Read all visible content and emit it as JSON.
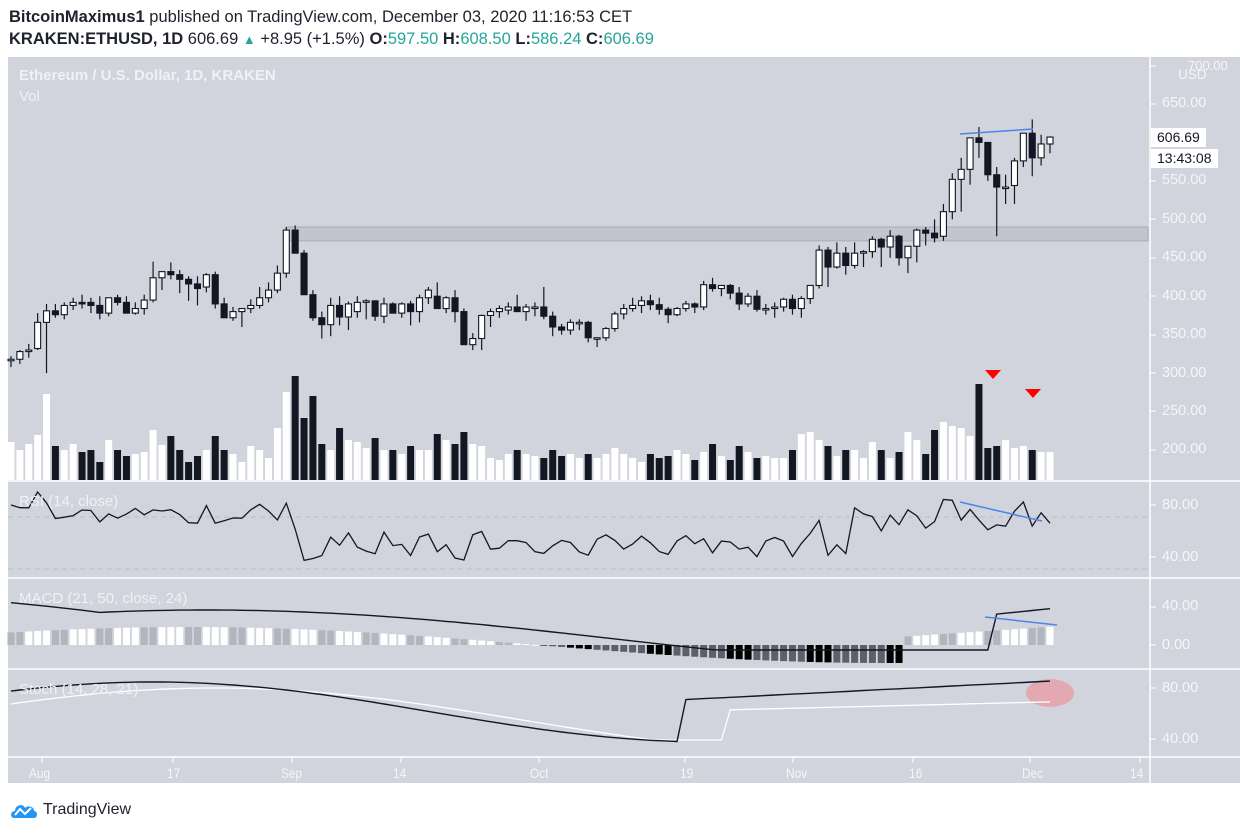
{
  "header": {
    "author": "BitcoinMaximus1",
    "published_text": "published on TradingView.com, December 03, 2020 11:16:53 CET",
    "symbol": "KRAKEN:ETHUSD, 1D",
    "last": "606.69",
    "change": "+8.95 (+1.5%)",
    "o_label": "O:",
    "o": "597.50",
    "h_label": "H:",
    "h": "608.50",
    "l_label": "L:",
    "l": "586.24",
    "c_label": "C:",
    "c": "606.69"
  },
  "legend": {
    "title": "Ethereum / U.S. Dollar, 1D, KRAKEN",
    "vol": "Vol",
    "rsi": "RSI (14, close)",
    "macd": "MACD (21, 50, close, 24)",
    "stoch": "Stoch (14, 28, 21)"
  },
  "price_axis": {
    "currency": "USD",
    "ticks": [
      "700.00",
      "650.00",
      "550.00",
      "500.00",
      "450.00",
      "400.00",
      "350.00",
      "300.00",
      "250.00",
      "200.00"
    ],
    "last_price_tag": "606.69",
    "countdown_tag": "13:43:08"
  },
  "rsi_axis": {
    "ticks": [
      "80.00",
      "40.00"
    ]
  },
  "macd_axis": {
    "ticks": [
      "40.00",
      "0.00"
    ]
  },
  "stoch_axis": {
    "ticks": [
      "80.00",
      "40.00"
    ]
  },
  "time_axis": {
    "ticks": [
      "Aug",
      "17",
      "Sep",
      "14",
      "Oct",
      "19",
      "Nov",
      "16",
      "Dec",
      "14"
    ]
  },
  "footer": {
    "brand": "TradingView"
  },
  "colors": {
    "background": "#d1d4dc",
    "up_candle": "#ffffff",
    "down_candle": "#131722",
    "trendline": "#4a86e8",
    "marker": "#ff0000",
    "highlight_circle": "#e8a0a8",
    "zone": "#c2c5cd"
  },
  "chart_data": [
    {
      "type": "candlestick",
      "title": "Ethereum / U.S. Dollar, 1D, KRAKEN",
      "ylabel": "USD",
      "ylim": [
        160,
        700
      ],
      "x_ticks": [
        "Aug",
        "17",
        "Sep",
        "14",
        "Oct",
        "19",
        "Nov",
        "16",
        "Dec",
        "14"
      ],
      "resistance_zone": [
        472,
        490
      ],
      "annotations": [
        "blue trendline across highs ~610-615 (double top)",
        "two red down arrows above volume spikes late Nov / early Dec"
      ],
      "ohlc": [
        [
          318,
          322,
          308,
          318
        ],
        [
          318,
          330,
          312,
          328
        ],
        [
          328,
          338,
          320,
          330
        ],
        [
          332,
          378,
          330,
          366
        ],
        [
          366,
          390,
          300,
          381
        ],
        [
          381,
          390,
          372,
          376
        ],
        [
          376,
          392,
          370,
          388
        ],
        [
          388,
          398,
          382,
          392
        ],
        [
          392,
          402,
          384,
          390
        ],
        [
          392,
          398,
          378,
          388
        ],
        [
          388,
          400,
          370,
          378
        ],
        [
          378,
          398,
          374,
          398
        ],
        [
          398,
          402,
          388,
          392
        ],
        [
          392,
          400,
          380,
          378
        ],
        [
          378,
          392,
          376,
          384
        ],
        [
          384,
          402,
          376,
          395
        ],
        [
          395,
          445,
          392,
          424
        ],
        [
          424,
          432,
          408,
          432
        ],
        [
          432,
          444,
          422,
          428
        ],
        [
          428,
          434,
          404,
          422
        ],
        [
          422,
          426,
          394,
          416
        ],
        [
          416,
          426,
          388,
          410
        ],
        [
          412,
          430,
          405,
          428
        ],
        [
          428,
          432,
          384,
          390
        ],
        [
          390,
          398,
          372,
          372
        ],
        [
          372,
          386,
          368,
          380
        ],
        [
          380,
          380,
          360,
          384
        ],
        [
          384,
          396,
          378,
          388
        ],
        [
          388,
          412,
          384,
          398
        ],
        [
          398,
          418,
          392,
          408
        ],
        [
          408,
          440,
          404,
          430
        ],
        [
          430,
          490,
          424,
          486
        ],
        [
          486,
          492,
          456,
          456
        ],
        [
          456,
          460,
          404,
          402
        ],
        [
          402,
          408,
          368,
          372
        ],
        [
          372,
          380,
          345,
          363
        ],
        [
          363,
          398,
          348,
          388
        ],
        [
          388,
          400,
          362,
          373
        ],
        [
          373,
          393,
          356,
          390
        ],
        [
          380,
          400,
          372,
          392
        ],
        [
          392,
          396,
          370,
          394
        ],
        [
          394,
          394,
          368,
          374
        ],
        [
          374,
          398,
          365,
          390
        ],
        [
          390,
          392,
          378,
          378
        ],
        [
          378,
          392,
          372,
          390
        ],
        [
          390,
          394,
          362,
          380
        ],
        [
          380,
          402,
          366,
          398
        ],
        [
          398,
          412,
          390,
          408
        ],
        [
          400,
          418,
          394,
          384
        ],
        [
          384,
          400,
          378,
          398
        ],
        [
          398,
          408,
          366,
          380
        ],
        [
          380,
          384,
          338,
          337
        ],
        [
          337,
          352,
          330,
          345
        ],
        [
          345,
          376,
          330,
          375
        ],
        [
          375,
          384,
          360,
          380
        ],
        [
          380,
          388,
          372,
          384
        ],
        [
          382,
          392,
          376,
          386
        ],
        [
          386,
          402,
          380,
          380
        ],
        [
          380,
          390,
          368,
          386
        ],
        [
          386,
          392,
          374,
          386
        ],
        [
          386,
          412,
          370,
          374
        ],
        [
          374,
          380,
          348,
          360
        ],
        [
          360,
          364,
          350,
          356
        ],
        [
          356,
          370,
          350,
          366
        ],
        [
          366,
          370,
          356,
          366
        ],
        [
          366,
          368,
          340,
          346
        ],
        [
          346,
          346,
          334,
          346
        ],
        [
          346,
          360,
          342,
          358
        ],
        [
          358,
          380,
          354,
          377
        ],
        [
          377,
          390,
          370,
          384
        ],
        [
          384,
          398,
          380,
          388
        ],
        [
          388,
          400,
          378,
          394
        ],
        [
          394,
          402,
          382,
          389
        ],
        [
          389,
          398,
          376,
          383
        ],
        [
          383,
          386,
          365,
          376
        ],
        [
          376,
          386,
          374,
          384
        ],
        [
          384,
          394,
          380,
          390
        ],
        [
          390,
          392,
          378,
          386
        ],
        [
          386,
          420,
          382,
          415
        ],
        [
          415,
          424,
          406,
          410
        ],
        [
          410,
          414,
          400,
          414
        ],
        [
          414,
          416,
          396,
          404
        ],
        [
          404,
          412,
          382,
          390
        ],
        [
          390,
          404,
          386,
          400
        ],
        [
          400,
          408,
          380,
          383
        ],
        [
          383,
          390,
          376,
          384
        ],
        [
          384,
          392,
          372,
          386
        ],
        [
          386,
          398,
          380,
          396
        ],
        [
          396,
          402,
          376,
          384
        ],
        [
          384,
          400,
          372,
          397
        ],
        [
          397,
          410,
          390,
          414
        ],
        [
          414,
          466,
          410,
          460
        ],
        [
          460,
          464,
          412,
          438
        ],
        [
          438,
          470,
          436,
          456
        ],
        [
          456,
          464,
          428,
          440
        ],
        [
          440,
          470,
          436,
          456
        ],
        [
          456,
          460,
          438,
          458
        ],
        [
          458,
          478,
          450,
          474
        ],
        [
          474,
          476,
          438,
          464
        ],
        [
          464,
          486,
          450,
          478
        ],
        [
          478,
          480,
          440,
          450
        ],
        [
          450,
          460,
          430,
          465
        ],
        [
          465,
          488,
          444,
          486
        ],
        [
          486,
          490,
          466,
          482
        ],
        [
          482,
          500,
          470,
          476
        ],
        [
          478,
          520,
          472,
          510
        ],
        [
          510,
          560,
          500,
          552
        ],
        [
          552,
          580,
          510,
          565
        ],
        [
          565,
          600,
          545,
          606
        ],
        [
          606,
          620,
          580,
          600
        ],
        [
          600,
          588,
          550,
          558
        ],
        [
          558,
          568,
          478,
          542
        ],
        [
          542,
          558,
          520,
          542
        ],
        [
          544,
          580,
          520,
          576
        ],
        [
          576,
          612,
          568,
          612
        ],
        [
          612,
          630,
          556,
          580
        ],
        [
          580,
          610,
          570,
          598
        ],
        [
          598,
          608,
          586,
          607
        ]
      ],
      "volume_pixels_note": "volume bar heights estimated in pixels relative to baseline y=480"
    },
    {
      "type": "line",
      "title": "RSI (14, close)",
      "ylim": [
        30,
        90
      ],
      "levels": [
        70,
        30
      ],
      "x_ticks": [
        "Aug",
        "17",
        "Sep",
        "14",
        "Oct",
        "19",
        "Nov",
        "16",
        "Dec",
        "14"
      ]
    },
    {
      "type": "line+histogram",
      "title": "MACD (21, 50, close, 24)",
      "ylim": [
        -20,
        50
      ],
      "y_ticks": [
        40,
        0
      ]
    },
    {
      "type": "line",
      "title": "Stoch (14, 28, 21)",
      "ylim": [
        30,
        95
      ],
      "y_ticks": [
        80,
        40
      ]
    }
  ]
}
